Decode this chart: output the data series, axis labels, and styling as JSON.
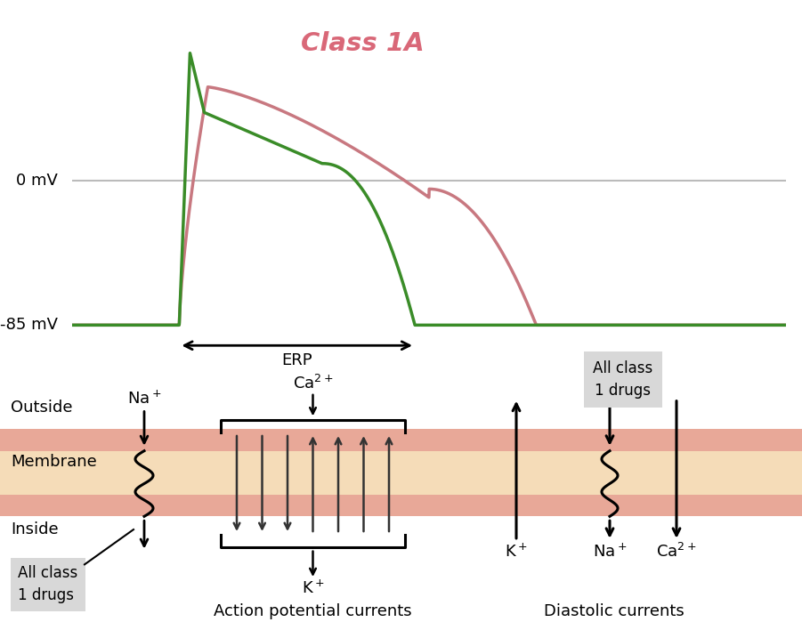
{
  "title": "Class 1A",
  "title_color": "#d96878",
  "title_fontsize": 21,
  "green_color": "#3a8c28",
  "pink_color": "#c87880",
  "zero_mv_label": "0 mV",
  "neg85_mv_label": "-85 mV",
  "erp_label": "ERP",
  "membrane_top_color": "#e8a898",
  "membrane_mid_color": "#f5dcb8",
  "membrane_bot_color": "#e8a898",
  "outside_label": "Outside",
  "membrane_label": "Membrane",
  "inside_label": "Inside",
  "all_class_1_bottom": "All class\n1 drugs",
  "all_class_1_top": "All class\n1 drugs",
  "action_potential_label": "Action potential currents",
  "diastolic_label": "Diastolic currents",
  "background_color": "#ffffff",
  "zero_line_color": "#bbbbbb"
}
